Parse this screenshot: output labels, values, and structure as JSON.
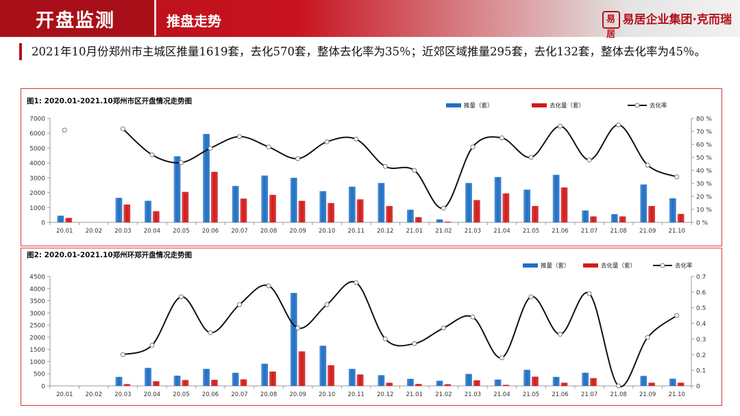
{
  "header": {
    "section_title": "开盘监测",
    "sub_title": "推盘走势",
    "brand_text": "易居企业集团·克而瑞",
    "brand_mark": "易居"
  },
  "summary": "2021年10月份郑州市主城区推量1619套，去化570套，整体去化率为35％；近郊区域推量295套，去化132套，整体去化率为45％。",
  "colors": {
    "supply": "#1f6fc4",
    "absorbed": "#d21a1a",
    "rate": "#111111"
  },
  "chart_data": [
    {
      "type": "bar",
      "title": "图1:   2020.01-2021.10郑州市区开盘情况走势图",
      "categories": [
        "20.01",
        "20.02",
        "20.03",
        "20.04",
        "20.05",
        "20.06",
        "20.07",
        "20.08",
        "20.09",
        "20.10",
        "20.11",
        "20.12",
        "21.01",
        "21.02",
        "21.03",
        "21.04",
        "21.05",
        "21.06",
        "21.07",
        "21.08",
        "21.09",
        "21.10"
      ],
      "series": [
        {
          "name": "推量（套）",
          "kind": "bar",
          "axis": "left",
          "values": [
            450,
            0,
            1650,
            1450,
            4450,
            5950,
            2450,
            3150,
            3000,
            2100,
            2400,
            2650,
            850,
            200,
            2650,
            3050,
            2200,
            3200,
            800,
            550,
            2550,
            1619
          ]
        },
        {
          "name": "去化量（套）",
          "kind": "bar",
          "axis": "left",
          "values": [
            300,
            0,
            1200,
            750,
            2050,
            3400,
            1600,
            1850,
            1450,
            1300,
            1550,
            1100,
            350,
            50,
            1500,
            1950,
            1100,
            2350,
            400,
            400,
            1100,
            570
          ]
        },
        {
          "name": "去化率",
          "kind": "line",
          "axis": "right",
          "values": [
            71,
            null,
            72,
            52,
            46,
            57,
            66,
            58,
            49,
            62,
            64,
            43,
            40,
            11,
            58,
            65,
            50,
            74,
            48,
            75,
            44,
            35
          ]
        }
      ],
      "ylim_left": [
        0,
        7000
      ],
      "yticks_left": [
        "0",
        "1000",
        "2000",
        "3000",
        "4000",
        "5000",
        "6000",
        "7000"
      ],
      "ylim_right": [
        0,
        80
      ],
      "yticks_right": [
        "0 %",
        "10 %",
        "20 %",
        "30 %",
        "40 %",
        "50 %",
        "60 %",
        "70 %",
        "80 %"
      ],
      "legend_position": "top-right"
    },
    {
      "type": "bar",
      "title": "图2:   2020.01-2021.10郑州环郑开盘情况走势图",
      "categories": [
        "20.01",
        "20.02",
        "20.03",
        "20.04",
        "20.05",
        "20.06",
        "20.07",
        "20.08",
        "20.09",
        "20.10",
        "20.11",
        "20.12",
        "21.01",
        "21.02",
        "21.03",
        "21.04",
        "21.05",
        "21.06",
        "21.07",
        "21.08",
        "21.09",
        "21.10"
      ],
      "series": [
        {
          "name": "推量（套）",
          "kind": "bar",
          "axis": "left",
          "values": [
            0,
            0,
            370,
            740,
            420,
            700,
            540,
            910,
            3820,
            1650,
            700,
            440,
            290,
            210,
            490,
            260,
            660,
            370,
            540,
            0,
            410,
            295
          ]
        },
        {
          "name": "去化量（套）",
          "kind": "bar",
          "axis": "left",
          "values": [
            0,
            0,
            75,
            190,
            240,
            250,
            270,
            590,
            1420,
            850,
            470,
            130,
            80,
            70,
            230,
            45,
            380,
            130,
            320,
            0,
            130,
            132
          ]
        },
        {
          "name": "去化率",
          "kind": "line",
          "axis": "right",
          "values": [
            null,
            null,
            0.2,
            0.26,
            0.57,
            0.34,
            0.52,
            0.64,
            0.37,
            0.52,
            0.66,
            0.3,
            0.27,
            0.37,
            0.44,
            0.18,
            0.57,
            0.33,
            0.59,
            0.0,
            0.31,
            0.45
          ]
        }
      ],
      "ylim_left": [
        0,
        4500
      ],
      "yticks_left": [
        "0",
        "500",
        "1000",
        "1500",
        "2000",
        "2500",
        "3000",
        "3500",
        "4000",
        "4500"
      ],
      "ylim_right": [
        0,
        0.7
      ],
      "yticks_right": [
        "0",
        "0.1",
        "0.2",
        "0.3",
        "0.4",
        "0.5",
        "0.6",
        "0.7"
      ],
      "legend_position": "top-right"
    }
  ]
}
